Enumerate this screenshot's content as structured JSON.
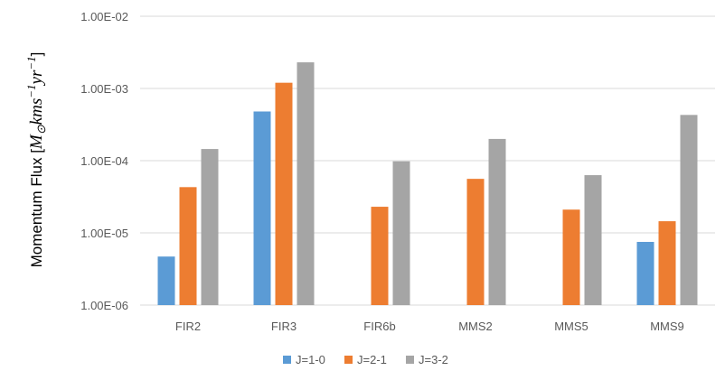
{
  "chart_data": {
    "type": "bar",
    "yscale": "log",
    "ylim": [
      1e-06,
      0.01
    ],
    "yticks": [
      {
        "value": 1e-06,
        "label": "1.00E-06"
      },
      {
        "value": 1e-05,
        "label": "1.00E-05"
      },
      {
        "value": 0.0001,
        "label": "1.00E-04"
      },
      {
        "value": 0.001,
        "label": "1.00E-03"
      },
      {
        "value": 0.01,
        "label": "1.00E-02"
      }
    ],
    "categories": [
      "FIR2",
      "FIR3",
      "FIR6b",
      "MMS2",
      "MMS5",
      "MMS9"
    ],
    "ylabel": {
      "prefix": "Momentum Flux [",
      "m": "M",
      "sun": "⊙",
      "km": "km",
      "s": "s",
      "exp1": "−1",
      "yr": "yr",
      "exp2": "−1",
      "suffix": "]"
    },
    "grid": true,
    "legend_position": "bottom",
    "series": [
      {
        "name": "J=1-0",
        "color": "#5B9BD5",
        "values": [
          4.7e-06,
          0.00048,
          null,
          null,
          null,
          7.5e-06
        ]
      },
      {
        "name": "J=2-1",
        "color": "#ED7D31",
        "values": [
          4.3e-05,
          0.0012,
          2.3e-05,
          5.6e-05,
          2.1e-05,
          1.45e-05
        ]
      },
      {
        "name": "J=3-2",
        "color": "#A5A5A5",
        "values": [
          0.000145,
          0.0023,
          9.8e-05,
          0.0002,
          6.3e-05,
          0.00043
        ]
      }
    ]
  }
}
